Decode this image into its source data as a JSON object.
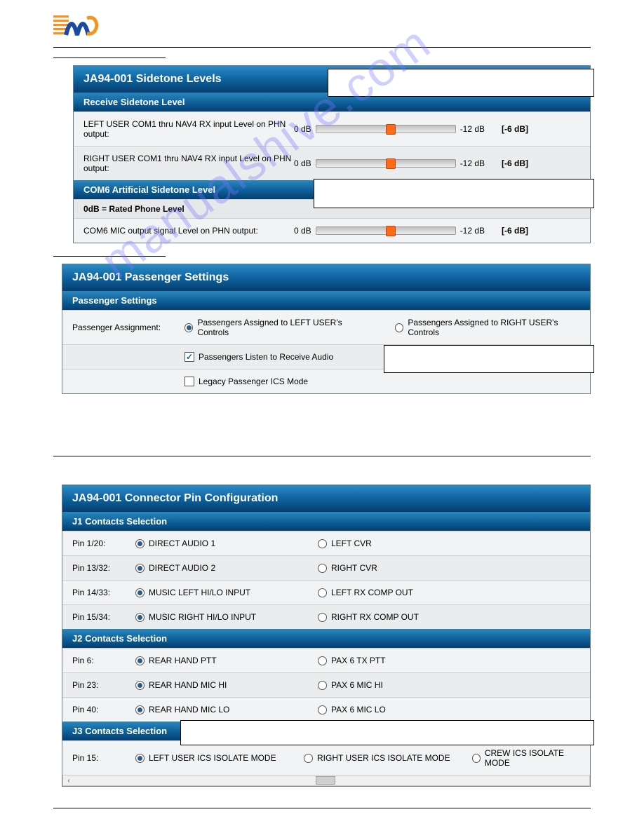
{
  "watermark": "manualshive.com",
  "panel1": {
    "title": "JA94-001 Sidetone Levels",
    "sub1": "Receive Sidetone Level",
    "row1_label": "LEFT USER COM1 thru NAV4 RX input Level on PHN output:",
    "row2_label": "RIGHT USER COM1 thru NAV4 RX input Level on PHN output:",
    "sub2": "COM6 Artificial Sidetone Level",
    "note": "0dB = Rated Phone Level",
    "row3_label": "COM6 MIC output signal Level on PHN output:",
    "slider_min": "0 dB",
    "slider_max": "-12 dB",
    "value": "[-6 dB]",
    "thumb_pos_pct": 50
  },
  "panel2": {
    "title": "JA94-001 Passenger Settings",
    "sub": "Passenger Settings",
    "assignment_label": "Passenger Assignment:",
    "opt_left": "Passengers Assigned to LEFT USER's Controls",
    "opt_right": "Passengers Assigned to RIGHT USER's Controls",
    "chk1": "Passengers Listen to Receive Audio",
    "chk2": "Legacy Passenger ICS Mode"
  },
  "panel3": {
    "title": "JA94-001 Connector Pin Configuration",
    "j1": {
      "title": "J1 Contacts Selection",
      "rows": [
        {
          "pin": "Pin 1/20:",
          "a": "DIRECT AUDIO 1",
          "b": "LEFT CVR"
        },
        {
          "pin": "Pin 13/32:",
          "a": "DIRECT AUDIO 2",
          "b": "RIGHT CVR"
        },
        {
          "pin": "Pin 14/33:",
          "a": "MUSIC LEFT HI/LO INPUT",
          "b": "LEFT RX COMP OUT"
        },
        {
          "pin": "Pin 15/34:",
          "a": "MUSIC RIGHT HI/LO INPUT",
          "b": "RIGHT RX COMP OUT"
        }
      ]
    },
    "j2": {
      "title": "J2 Contacts Selection",
      "rows": [
        {
          "pin": "Pin 6:",
          "a": "REAR HAND PTT",
          "b": "PAX 6 TX PTT"
        },
        {
          "pin": "Pin 23:",
          "a": "REAR HAND MIC HI",
          "b": "PAX 6 MIC HI"
        },
        {
          "pin": "Pin 40:",
          "a": "REAR HAND MIC LO",
          "b": "PAX 6 MIC LO"
        }
      ]
    },
    "j3": {
      "title": "J3 Contacts Selection",
      "row": {
        "pin": "Pin 15:",
        "a": "LEFT USER ICS ISOLATE MODE",
        "b": "RIGHT USER ICS ISOLATE MODE",
        "c": "CREW ICS ISOLATE MODE"
      }
    }
  }
}
